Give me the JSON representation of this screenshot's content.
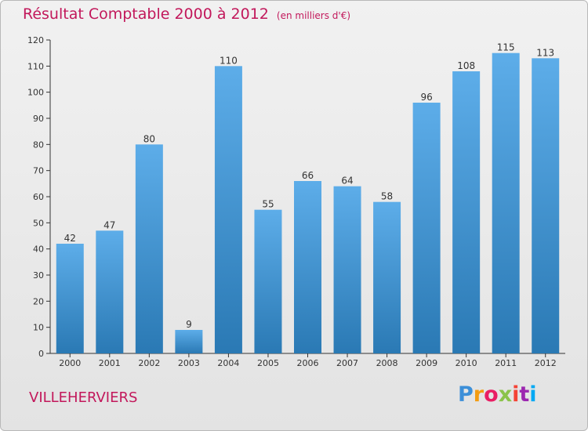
{
  "chart_data": {
    "type": "bar",
    "title": "Résultat Comptable 2000 à 2012",
    "subtitle": "(en milliers d'€)",
    "categories": [
      "2000",
      "2001",
      "2002",
      "2003",
      "2004",
      "2005",
      "2006",
      "2007",
      "2008",
      "2009",
      "2010",
      "2011",
      "2012"
    ],
    "values": [
      42,
      47,
      80,
      9,
      110,
      55,
      66,
      64,
      58,
      96,
      108,
      115,
      113
    ],
    "ylim": [
      0,
      120
    ],
    "yticks": [
      0,
      10,
      20,
      30,
      40,
      50,
      60,
      70,
      80,
      90,
      100,
      110,
      120
    ],
    "xlabel": "",
    "ylabel": "",
    "grid": false,
    "colors": {
      "bar_top": "#5dade9",
      "bar_bottom": "#2a79b4",
      "title": "#c2185b"
    }
  },
  "location": "VILLEHERVIERS",
  "logo": {
    "letters": [
      "P",
      "r",
      "o",
      "x",
      "i",
      "t",
      "i"
    ],
    "colors": [
      "#3c8fd8",
      "#f39c12",
      "#e91e63",
      "#8bc34a",
      "#f44336",
      "#9c27b0",
      "#03a9f4"
    ]
  }
}
